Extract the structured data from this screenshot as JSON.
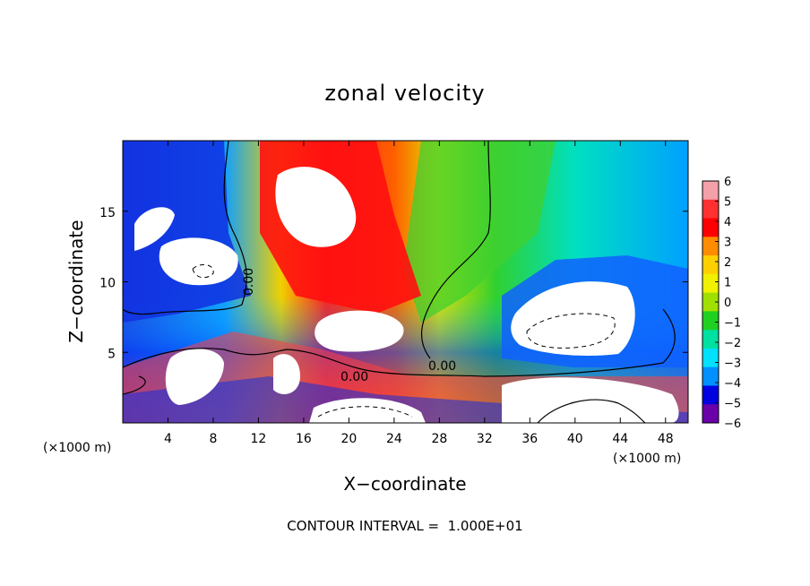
{
  "chart_data": {
    "type": "heatmap",
    "title": "zonal velocity",
    "xlabel": "X−coordinate",
    "ylabel": "Z−coordinate",
    "x_unit_left": "(×1000 m)",
    "x_unit_right": "(×1000 m)",
    "xlim": [
      0,
      50
    ],
    "ylim": [
      0,
      20
    ],
    "x_ticks": [
      4,
      8,
      12,
      16,
      20,
      24,
      28,
      32,
      36,
      40,
      44,
      48
    ],
    "y_ticks": [
      5,
      10,
      15
    ],
    "colorbar": {
      "ticks": [
        "6",
        "5",
        "4",
        "3",
        "2",
        "1",
        "0",
        "−1",
        "−2",
        "−3",
        "−4",
        "−5",
        "−6"
      ],
      "range": [
        -6,
        6
      ],
      "colors": [
        "#f4a0a8",
        "#ff3030",
        "#ff0000",
        "#ff8c00",
        "#ffd000",
        "#f0f000",
        "#a0e000",
        "#20d020",
        "#00e0a0",
        "#00e0ff",
        "#0090ff",
        "#0000e0",
        "#6a00a8"
      ]
    },
    "contour_labels": [
      "0.00",
      "0.00",
      "0.00"
    ],
    "annotation": "CONTOUR INTERVAL =  1.000E+01"
  }
}
